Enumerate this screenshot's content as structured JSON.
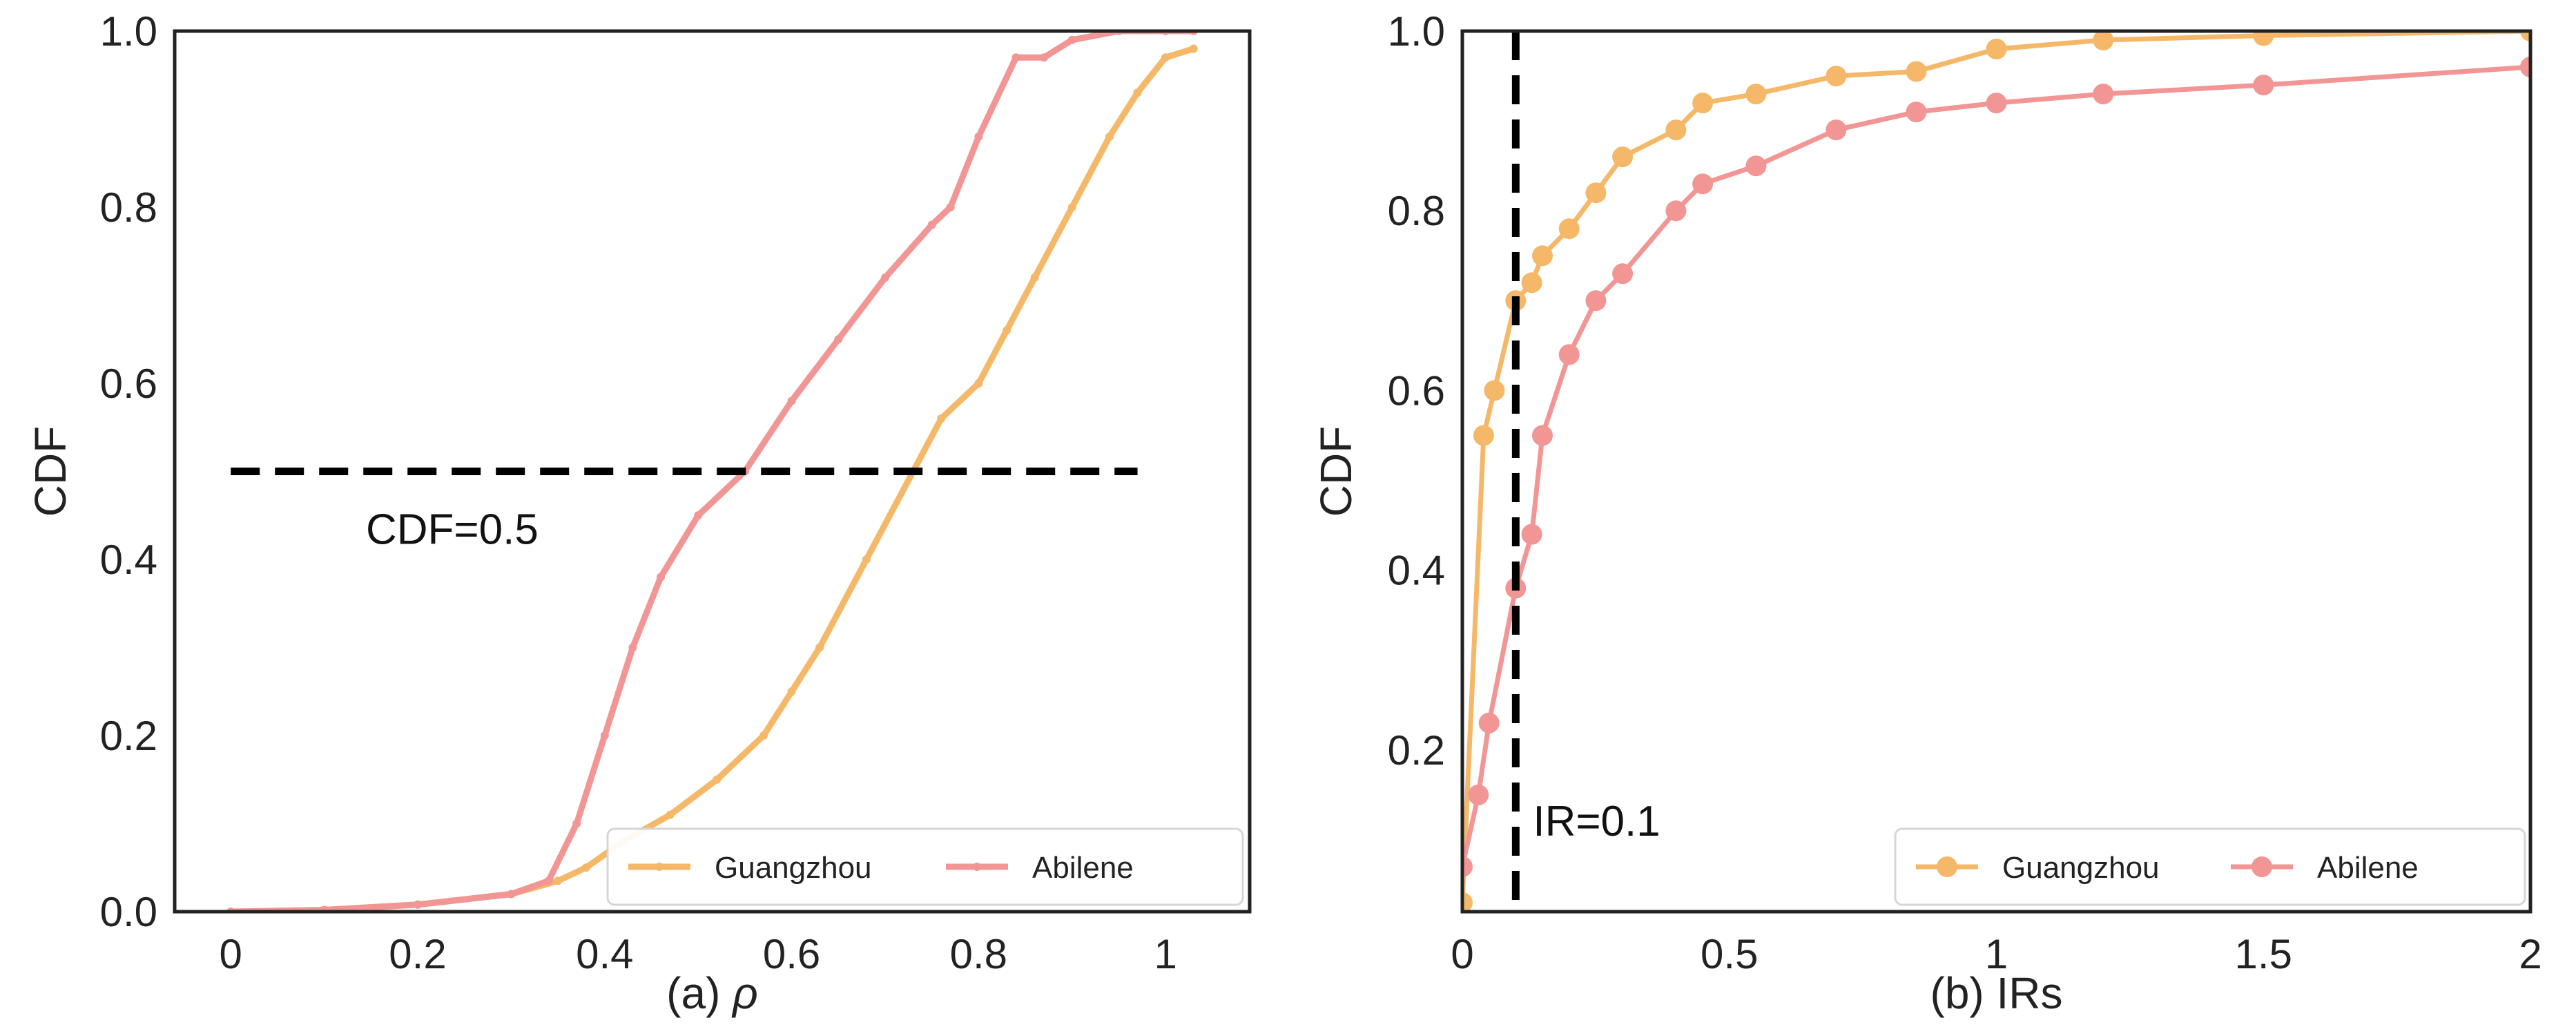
{
  "colors": {
    "guangzhou": "#F5B869",
    "abilene": "#F29595",
    "refline": "#000000",
    "frame": "#222222"
  },
  "chart_data": [
    {
      "type": "line",
      "xlabel_prefix": "(a) ",
      "xlabel_symbol": "ρ",
      "ylabel": "CDF",
      "xlim": [
        -0.06,
        1.09
      ],
      "ylim": [
        0,
        1
      ],
      "xticks": [
        0,
        0.2,
        0.4,
        0.6,
        0.8,
        1
      ],
      "xtick_labels": [
        "0",
        "0.2",
        "0.4",
        "0.6",
        "0.8",
        "1"
      ],
      "yticks": [
        0,
        0.2,
        0.4,
        0.6,
        0.8,
        1.0
      ],
      "ytick_labels": [
        "0.0",
        "0.2",
        "0.4",
        "0.6",
        "0.8",
        "1.0"
      ],
      "legend_position": "lower-right",
      "reference_line": {
        "orientation": "horizontal",
        "value": 0.5,
        "from": 0,
        "to": 0.97,
        "label": "CDF=0.5"
      },
      "series": [
        {
          "name": "Guangzhou",
          "color_key": "guangzhou",
          "marker": "small",
          "x": [
            0,
            0.1,
            0.2,
            0.3,
            0.35,
            0.38,
            0.42,
            0.47,
            0.52,
            0.57,
            0.6,
            0.63,
            0.68,
            0.73,
            0.76,
            0.8,
            0.83,
            0.86,
            0.9,
            0.94,
            0.97,
            1.0,
            1.03
          ],
          "y": [
            0,
            0.002,
            0.008,
            0.02,
            0.035,
            0.05,
            0.08,
            0.11,
            0.15,
            0.2,
            0.25,
            0.3,
            0.4,
            0.5,
            0.56,
            0.6,
            0.66,
            0.72,
            0.8,
            0.88,
            0.93,
            0.97,
            0.98
          ]
        },
        {
          "name": "Abilene",
          "color_key": "abilene",
          "marker": "small",
          "x": [
            0,
            0.1,
            0.2,
            0.3,
            0.34,
            0.37,
            0.4,
            0.43,
            0.46,
            0.5,
            0.55,
            0.6,
            0.65,
            0.7,
            0.75,
            0.77,
            0.8,
            0.84,
            0.87,
            0.9,
            0.95,
            1.0,
            1.03
          ],
          "y": [
            0,
            0.002,
            0.008,
            0.02,
            0.035,
            0.1,
            0.2,
            0.3,
            0.38,
            0.45,
            0.5,
            0.58,
            0.65,
            0.72,
            0.78,
            0.8,
            0.88,
            0.97,
            0.97,
            0.99,
            1.0,
            1.0,
            1.0
          ]
        }
      ]
    },
    {
      "type": "line",
      "xlabel": "(b) IRs",
      "ylabel": "CDF",
      "xlim": [
        0,
        2
      ],
      "ylim": [
        0.02,
        1.0
      ],
      "xticks": [
        0,
        0.5,
        1,
        1.5,
        2
      ],
      "xtick_labels": [
        "0",
        "0.5",
        "1",
        "1.5",
        "2"
      ],
      "yticks": [
        0.2,
        0.4,
        0.6,
        0.8,
        1.0
      ],
      "ytick_labels": [
        "0.2",
        "0.4",
        "0.6",
        "0.8",
        "1.0"
      ],
      "legend_position": "lower-right",
      "reference_line": {
        "orientation": "vertical",
        "value": 0.1,
        "label": "IR=0.1"
      },
      "series": [
        {
          "name": "Guangzhou",
          "color_key": "guangzhou",
          "marker": "large",
          "x": [
            0,
            0.04,
            0.06,
            0.1,
            0.13,
            0.15,
            0.2,
            0.25,
            0.3,
            0.4,
            0.45,
            0.55,
            0.7,
            0.85,
            1.0,
            1.2,
            1.5,
            2.0
          ],
          "y": [
            0.03,
            0.55,
            0.6,
            0.7,
            0.72,
            0.75,
            0.78,
            0.82,
            0.86,
            0.89,
            0.92,
            0.93,
            0.95,
            0.955,
            0.98,
            0.99,
            0.995,
            1.0
          ]
        },
        {
          "name": "Abilene",
          "color_key": "abilene",
          "marker": "large",
          "x": [
            0,
            0.03,
            0.05,
            0.1,
            0.13,
            0.15,
            0.2,
            0.25,
            0.3,
            0.4,
            0.45,
            0.55,
            0.7,
            0.85,
            1.0,
            1.2,
            1.5,
            2.0
          ],
          "y": [
            0.07,
            0.15,
            0.23,
            0.38,
            0.44,
            0.55,
            0.64,
            0.7,
            0.73,
            0.8,
            0.83,
            0.85,
            0.89,
            0.91,
            0.92,
            0.93,
            0.94,
            0.96
          ]
        }
      ]
    }
  ]
}
